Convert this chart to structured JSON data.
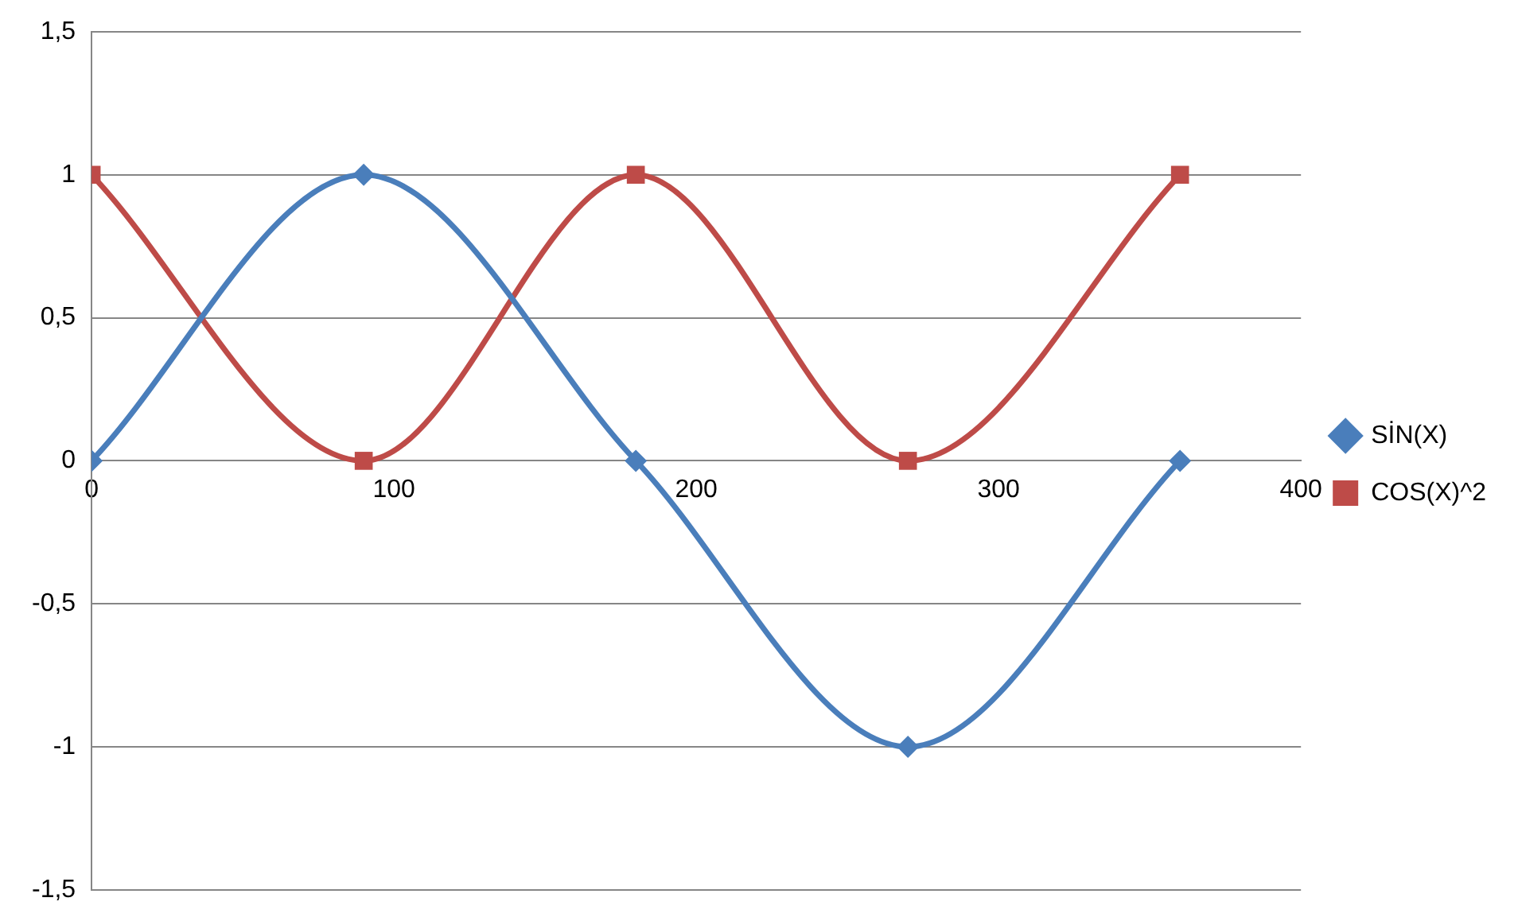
{
  "chart_data": {
    "type": "line",
    "x": [
      0,
      90,
      180,
      270,
      360
    ],
    "series": [
      {
        "name": "SİN(X)",
        "color": "#4a7ebb",
        "marker": "diamond",
        "values": [
          0,
          1,
          0,
          -1,
          0
        ]
      },
      {
        "name": "COS(X)^2",
        "color": "#be4b48",
        "marker": "square",
        "values": [
          1,
          0,
          1,
          0,
          1
        ]
      }
    ],
    "xlim": [
      0,
      400
    ],
    "xticks": [
      0,
      100,
      200,
      300,
      400
    ],
    "ylim": [
      -1.5,
      1.5
    ],
    "yticks": [
      {
        "value": -1.5,
        "label": "-1,5"
      },
      -1,
      {
        "value": -0.5,
        "label": "-0,5"
      },
      0,
      {
        "value": 0.5,
        "label": "0,5"
      },
      1,
      {
        "value": 1.5,
        "label": "1,5"
      }
    ],
    "grid": "y",
    "legend": "right",
    "line_style": "solid"
  }
}
